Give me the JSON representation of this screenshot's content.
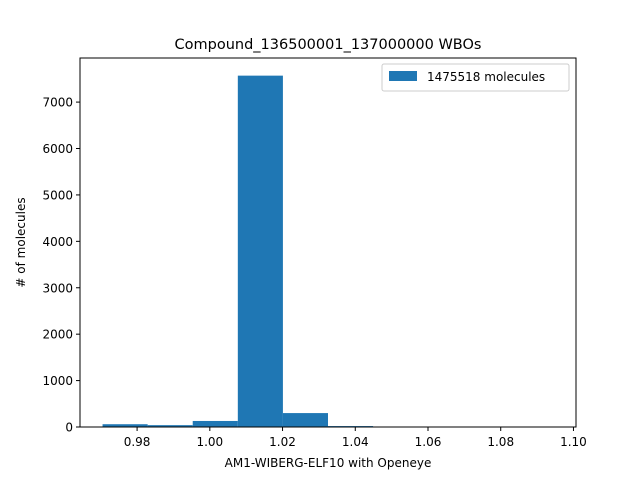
{
  "chart_data": {
    "type": "bar",
    "title": "Compound_136500001_137000000 WBOs",
    "xlabel": "AM1-WIBERG-ELF10 with Openeye",
    "ylabel": "# of molecules",
    "xlim": [
      0.9643,
      1.1007
    ],
    "ylim": [
      0,
      7950
    ],
    "xticks": [
      0.98,
      1.0,
      1.02,
      1.04,
      1.06,
      1.08,
      1.1
    ],
    "xtick_labels": [
      "0.98",
      "1.00",
      "1.02",
      "1.04",
      "1.06",
      "1.08",
      "1.10"
    ],
    "yticks": [
      0,
      1000,
      2000,
      3000,
      4000,
      5000,
      6000,
      7000
    ],
    "ytick_labels": [
      "0",
      "1000",
      "2000",
      "3000",
      "4000",
      "5000",
      "6000",
      "7000"
    ],
    "bin_edges": [
      0.9705,
      0.9829,
      0.9953,
      1.0077,
      1.0201,
      1.0325,
      1.0449,
      1.0573,
      1.0697,
      1.0821,
      1.0945
    ],
    "values": [
      60,
      40,
      130,
      7570,
      300,
      20,
      5,
      2,
      1,
      1
    ],
    "legend": {
      "label": "1475518 molecules",
      "position": "top-right"
    },
    "colors": {
      "bar": "#1f77b4"
    }
  }
}
